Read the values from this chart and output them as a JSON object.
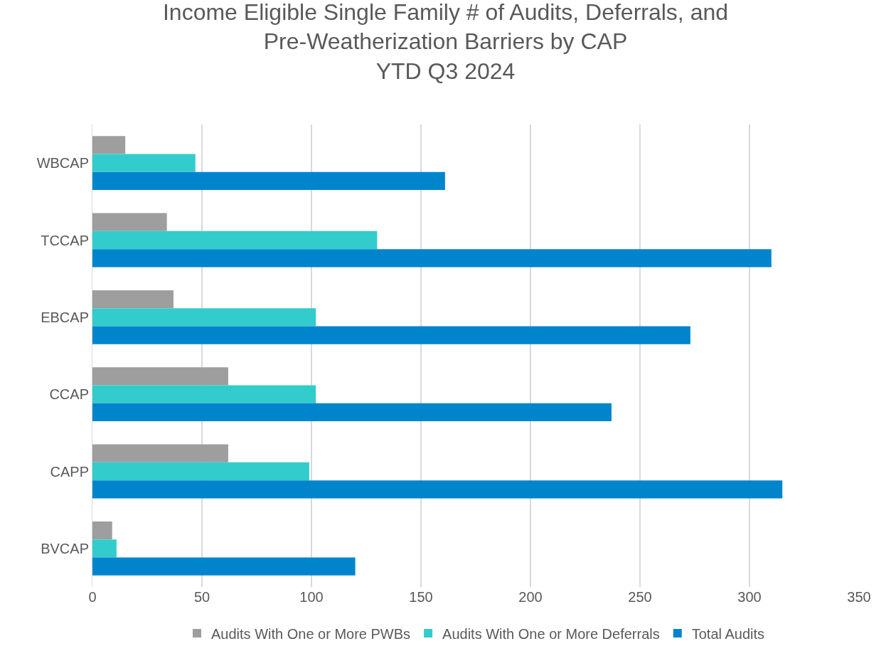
{
  "chart_data": {
    "type": "bar",
    "orientation": "horizontal",
    "title": "Income Eligible Single Family # of Audits, Deferrals, and\nPre-Weatherization Barriers by CAP\nYTD Q3 2024",
    "categories": [
      "WBCAP",
      "TCCAP",
      "EBCAP",
      "CCAP",
      "CAPP",
      "BVCAP"
    ],
    "series": [
      {
        "name": "Audits With One or More PWBs",
        "color": "#9e9e9e",
        "values": [
          15,
          34,
          37,
          62,
          62,
          9
        ]
      },
      {
        "name": "Audits With One or More Deferrals",
        "color": "#33cccc",
        "values": [
          47,
          130,
          102,
          102,
          99,
          11
        ]
      },
      {
        "name": "Total Audits",
        "color": "#0085cc",
        "values": [
          161,
          310,
          273,
          237,
          315,
          120
        ]
      }
    ],
    "xlim": [
      0,
      350
    ],
    "xticks": [
      0,
      50,
      100,
      150,
      200,
      250,
      300,
      350
    ],
    "grid": "x",
    "legend": "bottom"
  }
}
